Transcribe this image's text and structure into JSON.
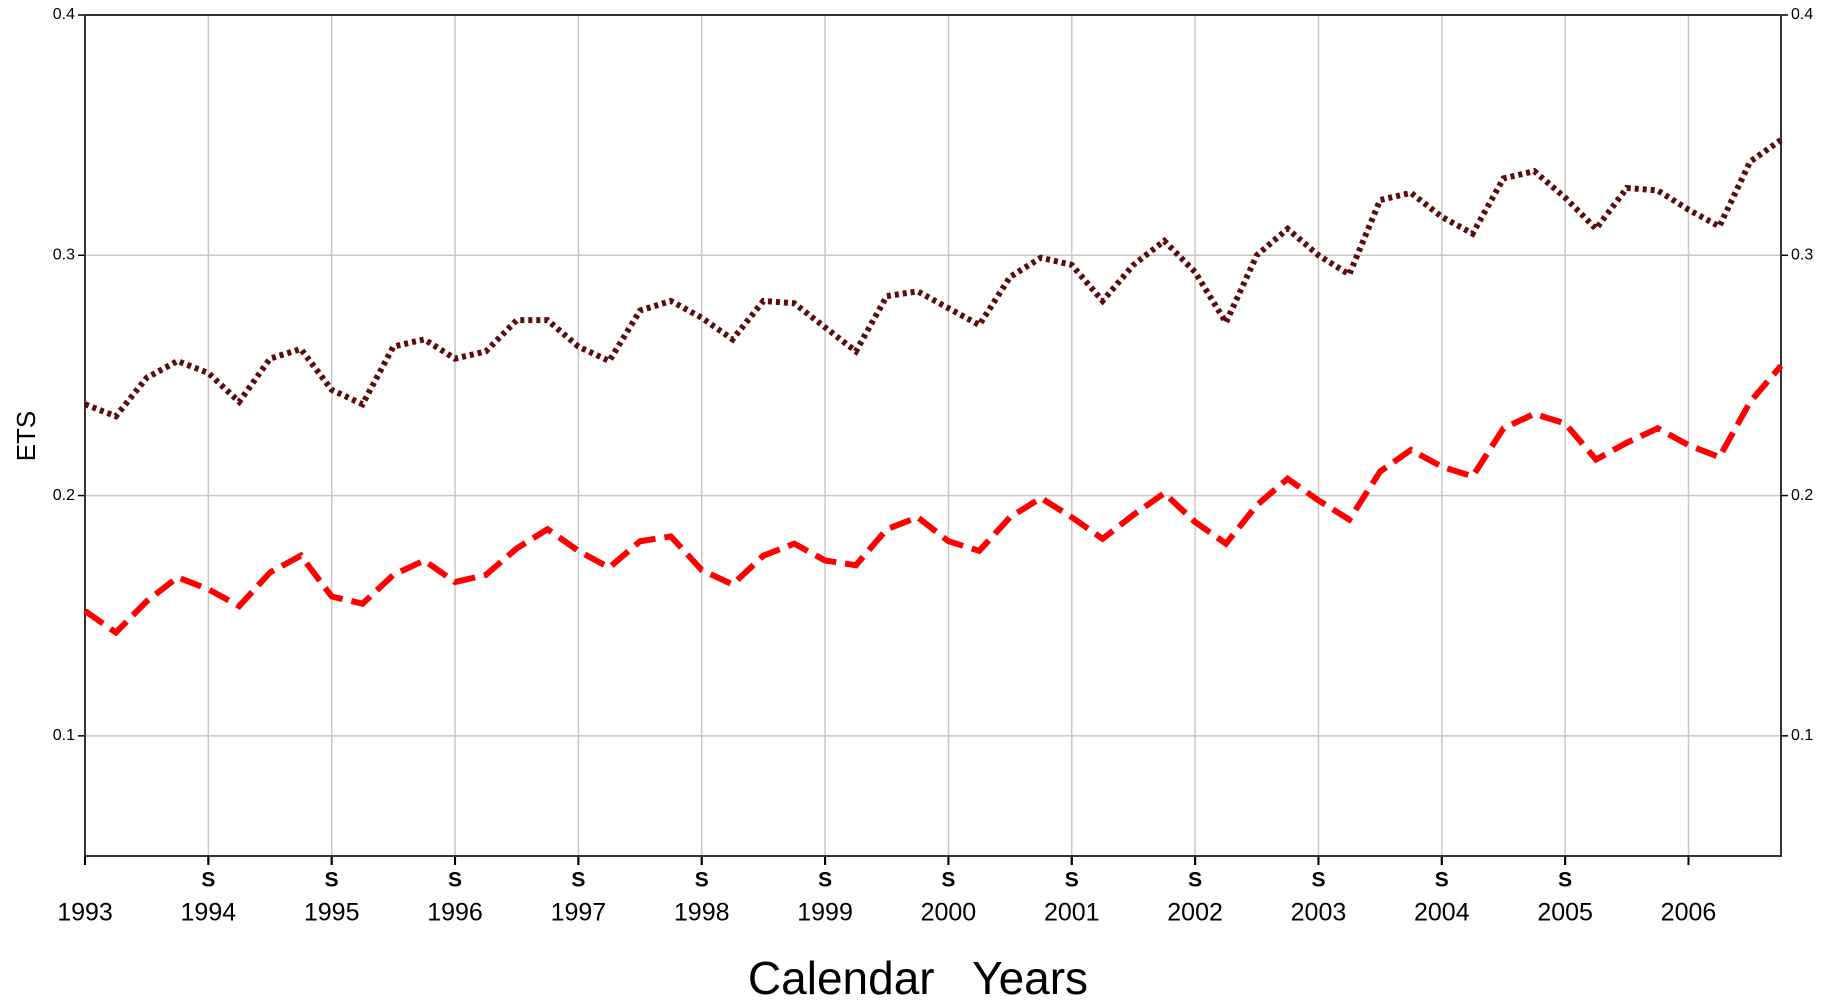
{
  "chart_data": {
    "type": "line",
    "x_label": "Calendar   Years",
    "y_label": "ETS",
    "x": [
      1993,
      1993.25,
      1993.5,
      1993.75,
      1994,
      1994.25,
      1994.5,
      1994.75,
      1995,
      1995.25,
      1995.5,
      1995.75,
      1996,
      1996.25,
      1996.5,
      1996.75,
      1997,
      1997.25,
      1997.5,
      1997.75,
      1998,
      1998.25,
      1998.5,
      1998.75,
      1999,
      1999.25,
      1999.5,
      1999.75,
      2000,
      2000.25,
      2000.5,
      2000.75,
      2001,
      2001.25,
      2001.5,
      2001.75,
      2002,
      2002.25,
      2002.5,
      2002.75,
      2003,
      2003.25,
      2003.5,
      2003.75,
      2004,
      2004.25,
      2004.5,
      2004.75,
      2005,
      2005.25,
      2005.5,
      2005.75,
      2006,
      2006.25,
      2006.5,
      2006.75
    ],
    "series": [
      {
        "color": "#5c0c0c",
        "dash": "dotted",
        "values": [
          0.238,
          0.233,
          0.249,
          0.256,
          0.251,
          0.239,
          0.257,
          0.261,
          0.244,
          0.238,
          0.262,
          0.265,
          0.257,
          0.26,
          0.273,
          0.273,
          0.262,
          0.256,
          0.277,
          0.281,
          0.274,
          0.265,
          0.281,
          0.28,
          0.27,
          0.26,
          0.283,
          0.285,
          0.278,
          0.271,
          0.291,
          0.299,
          0.296,
          0.281,
          0.296,
          0.306,
          0.293,
          0.272,
          0.3,
          0.311,
          0.3,
          0.292,
          0.323,
          0.326,
          0.316,
          0.309,
          0.332,
          0.335,
          0.324,
          0.311,
          0.328,
          0.327,
          0.319,
          0.312,
          0.339,
          0.348
        ]
      },
      {
        "color": "#ff0000",
        "dash": "dashed",
        "values": [
          0.152,
          0.143,
          0.156,
          0.166,
          0.161,
          0.154,
          0.168,
          0.175,
          0.158,
          0.155,
          0.167,
          0.173,
          0.164,
          0.167,
          0.178,
          0.186,
          0.177,
          0.17,
          0.181,
          0.183,
          0.169,
          0.163,
          0.175,
          0.18,
          0.173,
          0.171,
          0.186,
          0.191,
          0.181,
          0.177,
          0.191,
          0.199,
          0.191,
          0.182,
          0.192,
          0.201,
          0.189,
          0.18,
          0.196,
          0.207,
          0.198,
          0.19,
          0.21,
          0.219,
          0.212,
          0.208,
          0.228,
          0.234,
          0.23,
          0.215,
          0.222,
          0.228,
          0.221,
          0.216,
          0.239,
          0.254
        ]
      }
    ],
    "xlim": [
      1993,
      2006.75
    ],
    "xticks": [
      1993,
      1994,
      1995,
      1996,
      1997,
      1998,
      1999,
      2000,
      2001,
      2002,
      2003,
      2004,
      2005,
      2006
    ],
    "season_marks": {
      "label": "S",
      "at": [
        1994,
        1995,
        1996,
        1997,
        1998,
        1999,
        2000,
        2001,
        2002,
        2003,
        2004,
        2005
      ]
    },
    "ylim": [
      0.05,
      0.4
    ],
    "yticks": [
      0.1,
      0.2,
      0.3,
      0.4
    ],
    "y2lim": [
      0.05,
      0.4
    ],
    "y2ticks": [
      0.1,
      0.2,
      0.3,
      0.4
    ],
    "grid": true
  }
}
